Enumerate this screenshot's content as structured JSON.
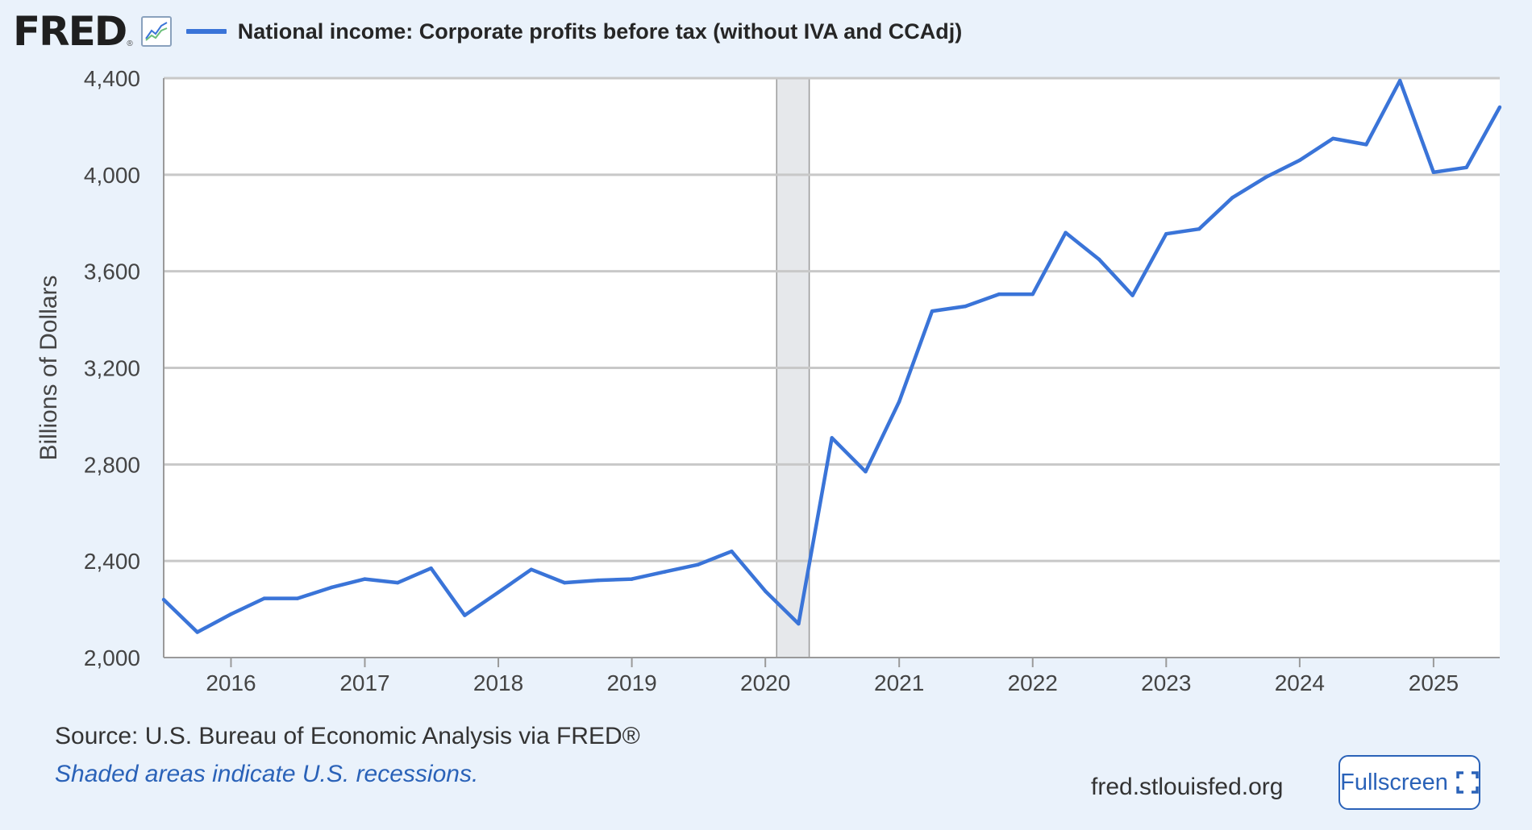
{
  "header": {
    "logo": "FRED",
    "logo_mark": "®",
    "series_title": "National income: Corporate profits before tax (without IVA and CCAdj)"
  },
  "colors": {
    "series": "#3a74d8",
    "recession_shade": "#e6e8eb",
    "grid": "#c8c8c8",
    "page_background": "#eaf2fb"
  },
  "chart_data": {
    "type": "line",
    "ylabel": "Billions of Dollars",
    "xlabel": "",
    "ylim": [
      2000,
      4400
    ],
    "xlim": [
      "2015-07-01",
      "2025-07-01"
    ],
    "yticks": [
      "2,000",
      "2,400",
      "2,800",
      "3,200",
      "3,600",
      "4,000",
      "4,400"
    ],
    "xticks": [
      "2016",
      "2017",
      "2018",
      "2019",
      "2020",
      "2021",
      "2022",
      "2023",
      "2024",
      "2025"
    ],
    "grid": true,
    "recessions": [
      {
        "start": "2020-02-01",
        "end": "2020-04-30"
      }
    ],
    "series": [
      {
        "x": [
          "2015-07-01",
          "2015-10-01",
          "2016-01-01",
          "2016-04-01",
          "2016-07-01",
          "2016-10-01",
          "2017-01-01",
          "2017-04-01",
          "2017-07-01",
          "2017-10-01",
          "2018-01-01",
          "2018-04-01",
          "2018-07-01",
          "2018-10-01",
          "2019-01-01",
          "2019-04-01",
          "2019-07-01",
          "2019-10-01",
          "2020-01-01",
          "2020-04-01",
          "2020-07-01",
          "2020-10-01",
          "2021-01-01",
          "2021-04-01",
          "2021-07-01",
          "2021-10-01",
          "2022-01-01",
          "2022-04-01",
          "2022-07-01",
          "2022-10-01",
          "2023-01-01",
          "2023-04-01",
          "2023-07-01",
          "2023-10-01",
          "2024-01-01",
          "2024-04-01",
          "2024-07-01",
          "2024-10-01",
          "2025-01-01",
          "2025-04-01",
          "2025-07-01"
        ],
        "values": [
          2240,
          2105,
          2180,
          2245,
          2245,
          2290,
          2325,
          2310,
          2370,
          2175,
          2270,
          2365,
          2310,
          2320,
          2325,
          2355,
          2385,
          2440,
          2275,
          2140,
          2910,
          2770,
          3060,
          3435,
          3455,
          3505,
          3505,
          3760,
          3650,
          3500,
          3755,
          3775,
          3905,
          3990,
          4060,
          4150,
          4125,
          4390,
          4010,
          4030,
          4280
        ]
      }
    ]
  },
  "footer": {
    "source": "Source: U.S. Bureau of Economic Analysis via FRED®",
    "recession_note": "Shaded areas indicate U.S. recessions.",
    "url": "fred.stlouisfed.org",
    "fullscreen_label": "Fullscreen"
  }
}
